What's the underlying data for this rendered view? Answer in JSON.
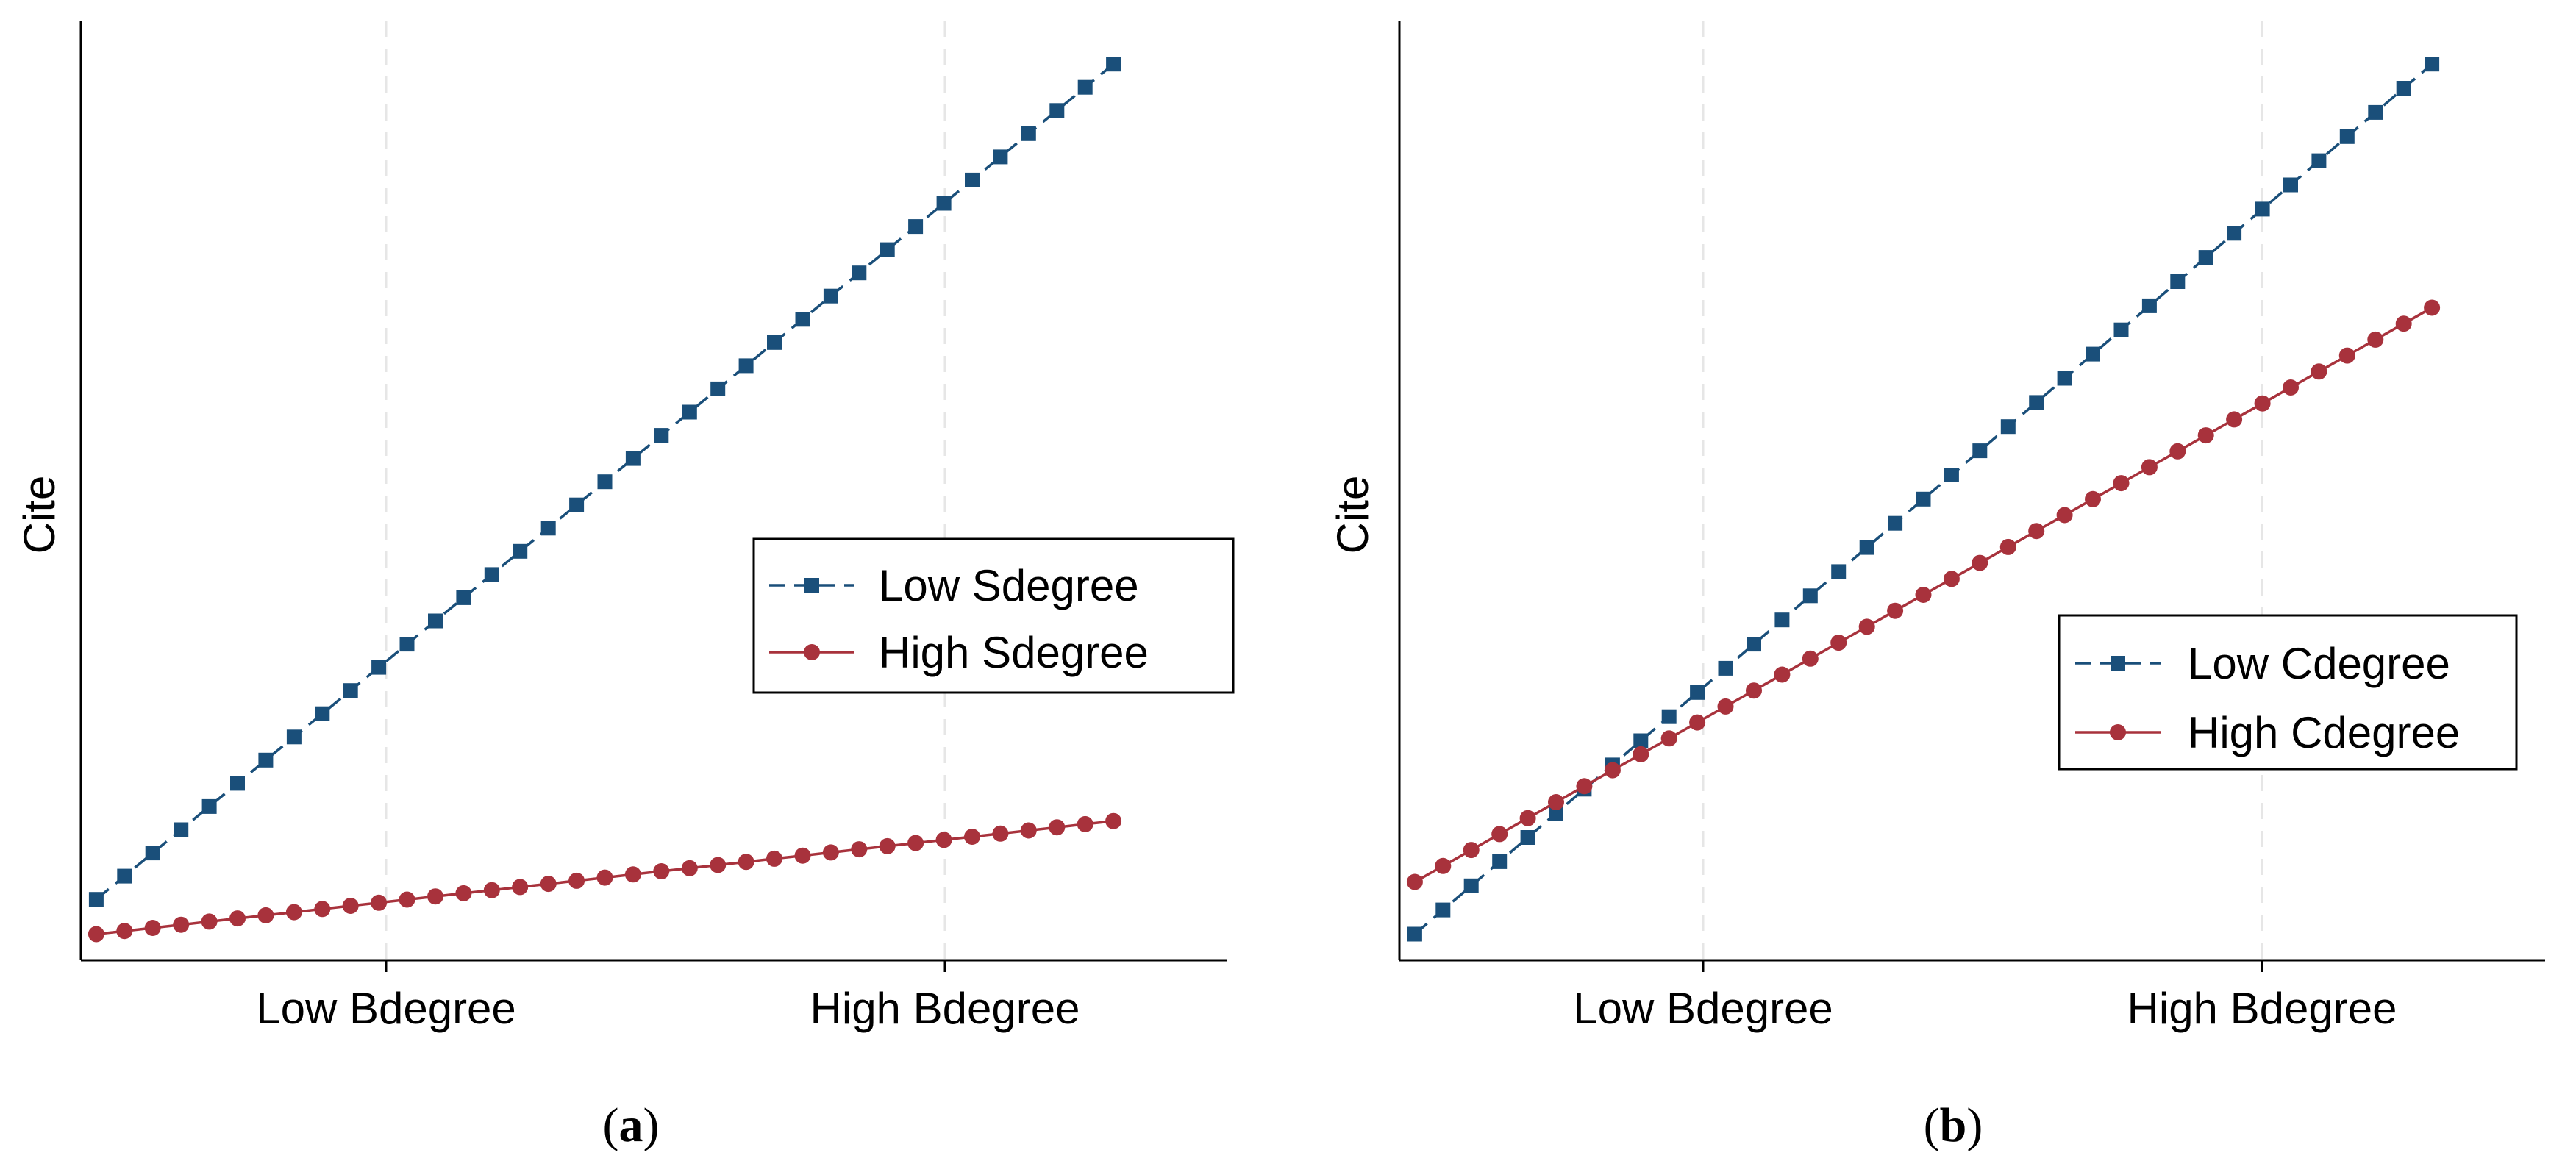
{
  "colors": {
    "low": "#1a4f7a",
    "high": "#a8323c",
    "grid": "#e6e6e6"
  },
  "chart_data": [
    {
      "type": "line",
      "panel_label": "a",
      "title": "",
      "xlabel": "",
      "ylabel": "Cite",
      "x_ticks": [
        {
          "value": 1,
          "label": "Low Bdegree"
        },
        {
          "value": 3,
          "label": "High Bdegree"
        }
      ],
      "xlim": [
        -0.075,
        4.025
      ],
      "ylim": [
        -0.03,
        1.05
      ],
      "x_range": [
        -0.02,
        3.62
      ],
      "n_points": 37,
      "grid": "vertical dashed at ticks",
      "legend_position": "right-middle",
      "series": [
        {
          "name": "Low Sdegree",
          "start": 0.04,
          "end": 1.0,
          "line_style": "dashed",
          "marker": "square",
          "color_key": "low"
        },
        {
          "name": "High Sdegree",
          "start": 0.0,
          "end": 0.13,
          "line_style": "solid",
          "marker": "circle",
          "color_key": "high"
        }
      ]
    },
    {
      "type": "line",
      "panel_label": "b",
      "title": "",
      "xlabel": "",
      "ylabel": "Cite",
      "x_ticks": [
        {
          "value": 1,
          "label": "Low Bdegree"
        },
        {
          "value": 3,
          "label": "High Bdegree"
        }
      ],
      "xlim": [
        -0.075,
        4.025
      ],
      "ylim": [
        -0.03,
        1.05
      ],
      "x_range": [
        -0.02,
        3.62
      ],
      "n_points": 37,
      "grid": "vertical dashed at ticks",
      "legend_position": "right-lower",
      "series": [
        {
          "name": "Low Cdegree",
          "start": 0.0,
          "end": 1.0,
          "line_style": "dashed",
          "marker": "square",
          "color_key": "low"
        },
        {
          "name": "High Cdegree",
          "start": 0.06,
          "end": 0.72,
          "line_style": "solid",
          "marker": "circle",
          "color_key": "high"
        }
      ]
    }
  ]
}
